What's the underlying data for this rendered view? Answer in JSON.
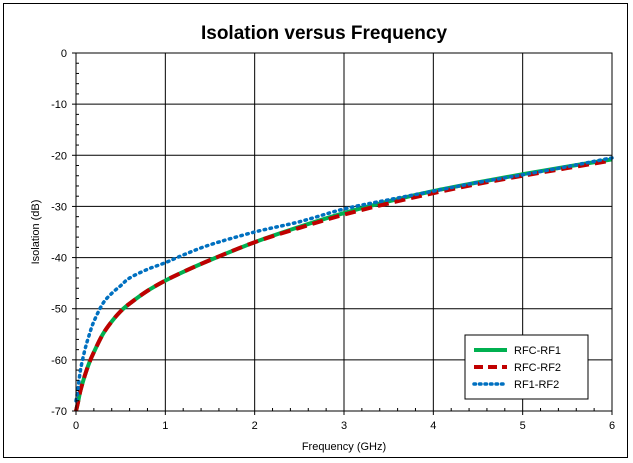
{
  "chart_data": {
    "type": "line",
    "title": "Isolation versus Frequency",
    "xlabel": "Frequency (GHz)",
    "ylabel": "Isolation (dB)",
    "xlim": [
      0,
      6
    ],
    "ylim": [
      -70,
      0
    ],
    "xticks": [
      0,
      1,
      2,
      3,
      4,
      5,
      6
    ],
    "xtick_labels": [
      "0",
      "1",
      "2",
      "3",
      "4",
      "5",
      "6"
    ],
    "yticks": [
      0,
      -10,
      -20,
      -30,
      -40,
      -50,
      -60,
      -70
    ],
    "ytick_labels": [
      "0",
      "-10",
      "-20",
      "-30",
      "-40",
      "-50",
      "-60",
      "-70"
    ],
    "grid": true,
    "legend_position": "bottom-right",
    "series": [
      {
        "name": "RFC-RF1",
        "color": "#00b050",
        "style": "solid",
        "x": [
          0,
          0.02,
          0.05,
          0.1,
          0.15,
          0.2,
          0.3,
          0.4,
          0.5,
          0.6,
          0.8,
          1.0,
          1.2,
          1.5,
          2.0,
          2.5,
          3.0,
          3.5,
          4.0,
          4.5,
          5.0,
          5.5,
          6.0
        ],
        "y": [
          -70,
          -68.5,
          -66,
          -63,
          -60.5,
          -58.5,
          -55,
          -52.5,
          -50.5,
          -49,
          -46.5,
          -44.5,
          -42.8,
          -40.5,
          -37,
          -34,
          -31.3,
          -29,
          -27,
          -25.3,
          -23.7,
          -22.2,
          -20.8
        ]
      },
      {
        "name": "RFC-RF2",
        "color": "#c00000",
        "style": "dashed",
        "x": [
          0,
          0.02,
          0.05,
          0.1,
          0.15,
          0.2,
          0.3,
          0.4,
          0.5,
          0.6,
          0.8,
          1.0,
          1.2,
          1.5,
          2.0,
          2.5,
          3.0,
          3.5,
          4.0,
          4.5,
          5.0,
          5.5,
          6.0
        ],
        "y": [
          -70,
          -68.5,
          -66,
          -63,
          -60.5,
          -58.5,
          -55,
          -52.5,
          -50.5,
          -49,
          -46.5,
          -44.5,
          -42.8,
          -40.5,
          -37,
          -34.2,
          -31.6,
          -29.4,
          -27.4,
          -25.6,
          -24,
          -22.5,
          -21
        ]
      },
      {
        "name": "RF1-RF2",
        "color": "#0070c0",
        "style": "dotted",
        "x": [
          0,
          0.02,
          0.05,
          0.1,
          0.15,
          0.2,
          0.3,
          0.4,
          0.5,
          0.6,
          0.8,
          1.0,
          1.2,
          1.5,
          2.0,
          2.5,
          3.0,
          3.5,
          4.0,
          4.5,
          5.0,
          5.5,
          6.0
        ],
        "y": [
          -68,
          -66,
          -62,
          -58,
          -55,
          -52.5,
          -49,
          -47,
          -45.5,
          -44,
          -42.3,
          -41,
          -39.5,
          -37.5,
          -35,
          -33,
          -30.5,
          -28.7,
          -27,
          -25.3,
          -23.8,
          -22.2,
          -20.5
        ]
      }
    ]
  }
}
